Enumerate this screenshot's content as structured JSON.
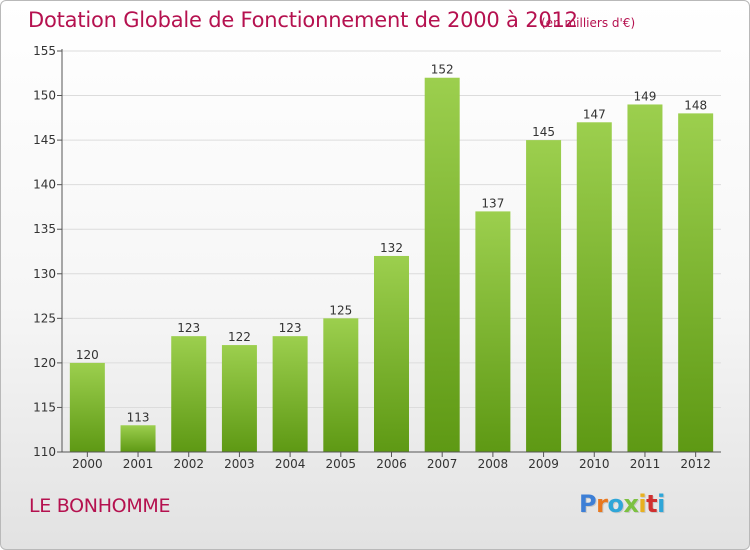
{
  "header": {
    "title": "Dotation Globale de Fonctionnement de 2000 à 2012",
    "unit": "(en milliers d'€)"
  },
  "footer": {
    "commune": "LE BONHOMME",
    "logo_letters": [
      "P",
      "r",
      "o",
      "x",
      "i",
      "t",
      "i"
    ],
    "logo_text": "Proxiti"
  },
  "colors": {
    "bar_top": "#9ccf4e",
    "bar_bottom": "#5e9914",
    "title": "#b5114f",
    "logo": [
      "#3d7fd6",
      "#e87820",
      "#2fa6d8",
      "#7cc142",
      "#e8b020",
      "#d03030",
      "#2fa6d8"
    ]
  },
  "chart_data": {
    "type": "bar",
    "title": "Dotation Globale de Fonctionnement de 2000 à 2012",
    "xlabel": "",
    "ylabel": "",
    "categories": [
      "2000",
      "2001",
      "2002",
      "2003",
      "2004",
      "2005",
      "2006",
      "2007",
      "2008",
      "2009",
      "2010",
      "2011",
      "2012"
    ],
    "values": [
      120,
      113,
      123,
      122,
      123,
      125,
      132,
      152,
      137,
      145,
      147,
      149,
      148
    ],
    "ylim": [
      110,
      155
    ],
    "yticks": [
      110,
      115,
      120,
      125,
      130,
      135,
      140,
      145,
      150,
      155
    ],
    "grid": true
  }
}
